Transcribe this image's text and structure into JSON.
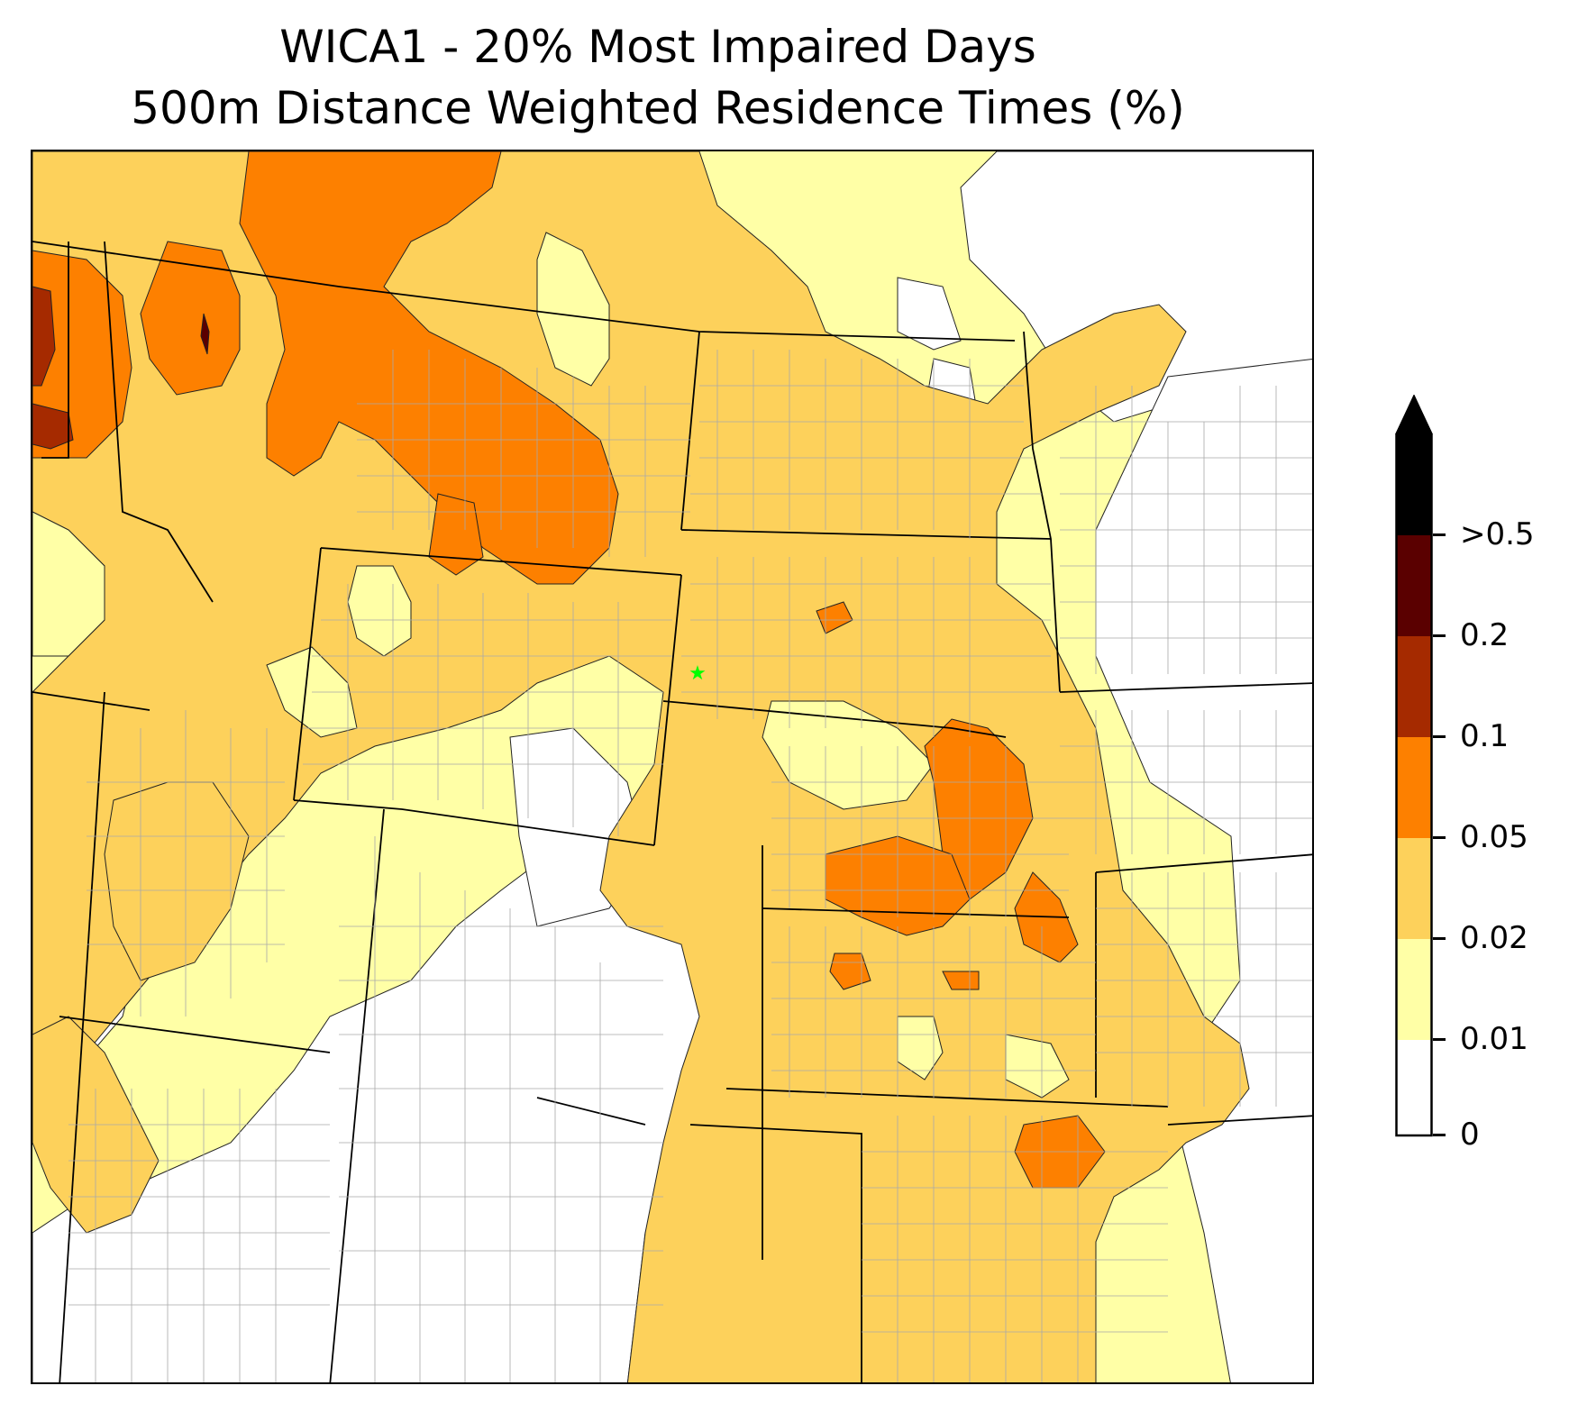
{
  "title": {
    "line1": "WICA1 - 20% Most Impaired Days",
    "line2": "500m Distance Weighted Residence Times (%)"
  },
  "site_marker": {
    "color": "#00ff00",
    "shape": "star-icon"
  },
  "colorbar": {
    "bins": [
      {
        "label": "0",
        "color": "#ffffff"
      },
      {
        "label": "0.01",
        "color": "#ffffa6"
      },
      {
        "label": "0.02",
        "color": "#fdd15b"
      },
      {
        "label": "0.05",
        "color": "#fd8000"
      },
      {
        "label": "0.1",
        "color": "#a52a00"
      },
      {
        "label": "0.2",
        "color": "#5a0000"
      },
      {
        "label": ">0.5",
        "color": "#000000"
      }
    ],
    "extend": "max"
  },
  "colors": {
    "state_border": "#000000",
    "county_border": "#a9a9a9",
    "contour_line": "#222222"
  }
}
